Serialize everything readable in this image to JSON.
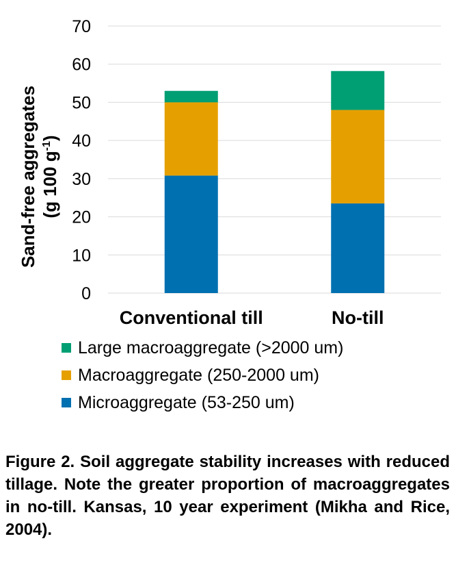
{
  "chart_data": {
    "type": "bar",
    "stacked": true,
    "categories": [
      "Conventional till",
      "No-till"
    ],
    "series": [
      {
        "name": "Microaggregate (53-250 um)",
        "color": "#0070B0",
        "values": [
          30.8,
          23.5
        ]
      },
      {
        "name": "Macroaggregate (250-2000 um)",
        "color": "#E5A000",
        "values": [
          19.2,
          24.5
        ]
      },
      {
        "name": "Large macroaggregate (>2000 um)",
        "color": "#009E73",
        "values": [
          3.0,
          10.2
        ]
      }
    ],
    "ylabel_line1": "Sand-free aggregates",
    "ylabel_line2_prefix": "(g 100 g",
    "ylabel_line2_sup": "-1",
    "ylabel_line2_suffix": ")",
    "ylim": [
      0,
      70
    ],
    "yticks": [
      "0",
      "10",
      "20",
      "30",
      "40",
      "50",
      "60",
      "70"
    ],
    "grid": true,
    "legend_position": "bottom",
    "legend_order": [
      "Large macroaggregate (>2000 um)",
      "Macroaggregate (250-2000 um)",
      "Microaggregate (53-250 um)"
    ]
  },
  "caption": "Figure 2. Soil aggregate stability increases with reduced tillage. Note the greater proportion of macroaggregates in no-till. Kansas, 10 year experiment (Mikha and Rice, 2004)."
}
